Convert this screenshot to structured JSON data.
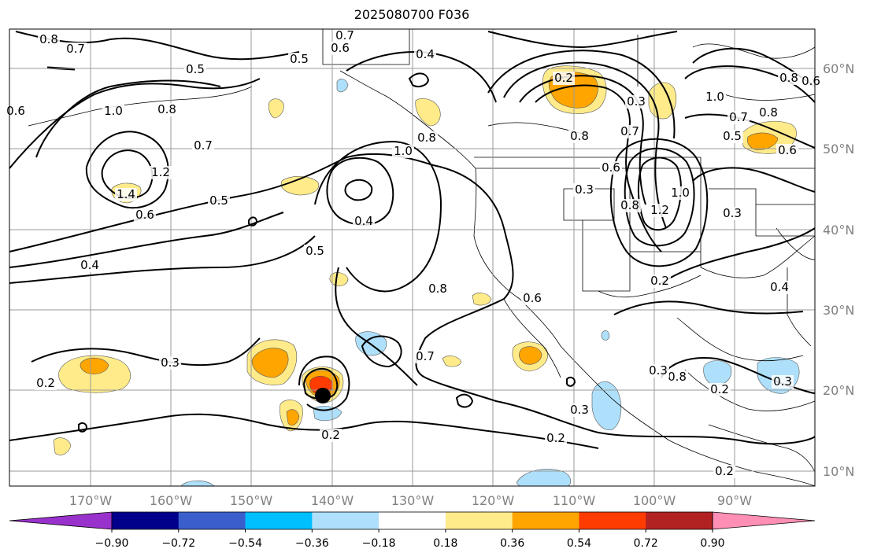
{
  "title": "2025080700 F036",
  "lat_labels": [
    "60°N",
    "50°N",
    "40°N",
    "30°N",
    "20°N",
    "10°N"
  ],
  "lon_labels": [
    "170°W",
    "160°W",
    "150°W",
    "140°W",
    "130°W",
    "120°W",
    "110°W",
    "100°W",
    "90°W"
  ],
  "colorbar": {
    "tick_labels": [
      "−0.90",
      "−0.72",
      "−0.54",
      "−0.36",
      "−0.18",
      "0.18",
      "0.36",
      "0.54",
      "0.72",
      "0.90"
    ],
    "colors": [
      "#9932cc",
      "#00008b",
      "#3a5fcd",
      "#00bfff",
      "#aee0fb",
      "#ffffff",
      "#ffeb8a",
      "#ffa500",
      "#ff3c00",
      "#b22222",
      "#ff8fb4"
    ]
  },
  "contour_labels": [
    {
      "text": "0.8"
    },
    {
      "text": "0.7"
    },
    {
      "text": "0.5"
    },
    {
      "text": "0.5"
    },
    {
      "text": "0.6"
    },
    {
      "text": "0.8"
    },
    {
      "text": "1.0"
    },
    {
      "text": "1.4"
    },
    {
      "text": "1.2"
    },
    {
      "text": "0.7"
    },
    {
      "text": "0.6"
    },
    {
      "text": "0.5"
    },
    {
      "text": "0.4"
    },
    {
      "text": "0.3"
    },
    {
      "text": "0.2"
    },
    {
      "text": "0.7"
    },
    {
      "text": "0.6"
    },
    {
      "text": "0.4"
    },
    {
      "text": "1.0"
    },
    {
      "text": "0.8"
    },
    {
      "text": "0.4"
    },
    {
      "text": "0.5"
    },
    {
      "text": "0.8"
    },
    {
      "text": "0.7"
    },
    {
      "text": "0.2"
    },
    {
      "text": "0.6"
    },
    {
      "text": "0.2"
    },
    {
      "text": "0.3"
    },
    {
      "text": "0.8"
    },
    {
      "text": "0.7"
    },
    {
      "text": "0.6"
    },
    {
      "text": "0.3"
    },
    {
      "text": "0.8"
    },
    {
      "text": "1.2"
    },
    {
      "text": "1.0"
    },
    {
      "text": "0.6"
    },
    {
      "text": "0.8"
    },
    {
      "text": "1.0"
    },
    {
      "text": "0.7"
    },
    {
      "text": "0.5"
    },
    {
      "text": "0.6"
    },
    {
      "text": "0.8"
    },
    {
      "text": "0.3"
    },
    {
      "text": "0.2"
    },
    {
      "text": "0.4"
    },
    {
      "text": "0.8"
    },
    {
      "text": "0.3"
    },
    {
      "text": "0.3"
    },
    {
      "text": "0.2"
    },
    {
      "text": "0.2"
    },
    {
      "text": "0.3"
    },
    {
      "text": "0.2"
    }
  ]
}
